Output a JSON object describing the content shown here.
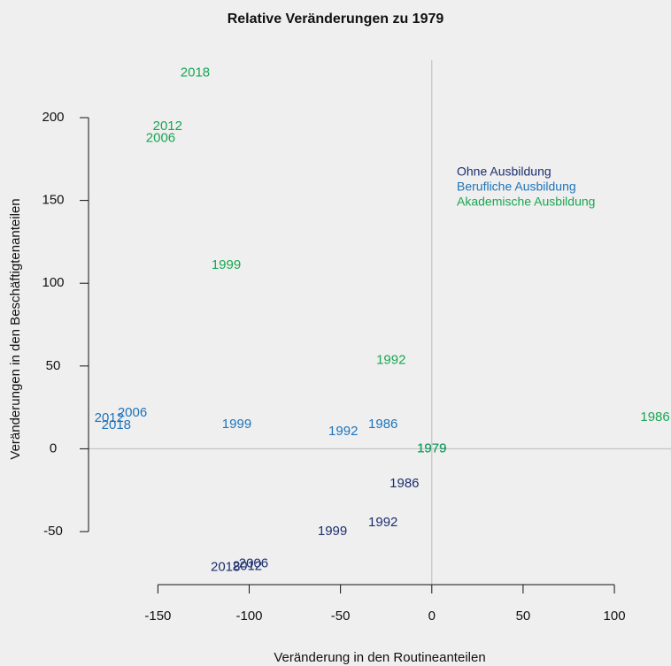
{
  "chart_data": {
    "type": "text-scatter",
    "title": "Relative Veränderungen zu 1979",
    "x_label": "Veränderung in den Routineanteilen",
    "y_label": "Veränderungen in den Beschäftigtenanteilen",
    "xlim": [
      -188,
      131
    ],
    "ylim": [
      -81.5,
      239
    ],
    "xticks": [
      -150,
      -100,
      -50,
      0,
      50,
      100
    ],
    "yticks": [
      -50,
      0,
      50,
      100,
      150,
      200
    ],
    "legend": "top-right",
    "series": [
      {
        "name": "Ohne Ausbildung",
        "color": "#1b2f6e",
        "labels": [
          "1979",
          "1986",
          "1992",
          "1999",
          "2006",
          "2012",
          "2018"
        ],
        "x": [
          0,
          -15,
          -26.7,
          -54.4,
          -97.6,
          -101,
          -113
        ],
        "y": [
          0,
          -21.2,
          -44.6,
          -50,
          -69.6,
          -71.2,
          -71.7
        ]
      },
      {
        "name": "Berufliche Ausbildung",
        "color": "#1f74b9",
        "labels": [
          "1979",
          "1986",
          "1992",
          "1999",
          "2006",
          "2012",
          "2018"
        ],
        "x": [
          0,
          -26.7,
          -48.5,
          -106.8,
          -164,
          -176.7,
          -172.8
        ],
        "y": [
          0,
          14.7,
          10.3,
          14.7,
          21.7,
          18.5,
          14.1
        ]
      },
      {
        "name": "Akademische Ausbildung",
        "color": "#1aa653",
        "labels": [
          "1979",
          "1986",
          "1992",
          "1999",
          "2006",
          "2012",
          "2018"
        ],
        "x": [
          0,
          122.3,
          -22.3,
          -112.6,
          -148.5,
          -144.7,
          -129.6
        ],
        "y": [
          0,
          19,
          53.3,
          110.9,
          187.5,
          194.6,
          227
        ]
      }
    ]
  }
}
